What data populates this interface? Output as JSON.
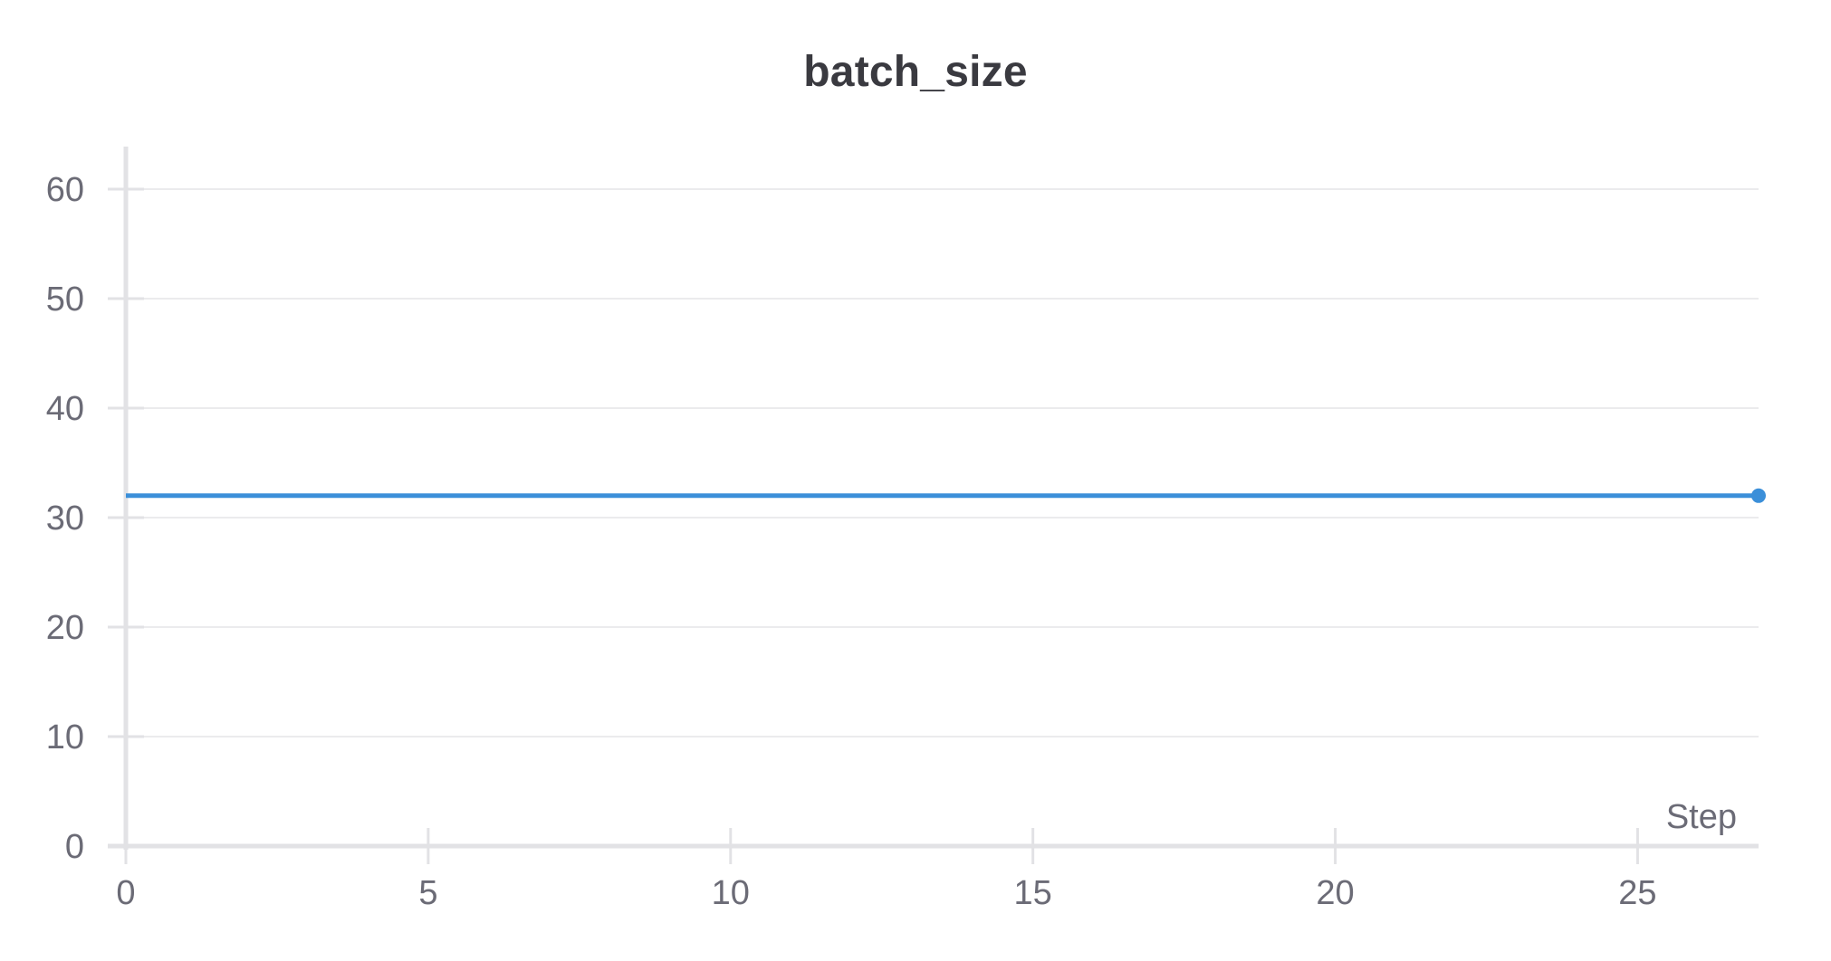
{
  "chart_data": {
    "type": "line",
    "title": "batch_size",
    "xlabel": "Step",
    "ylabel": "",
    "xlim": [
      0,
      27
    ],
    "ylim": [
      0,
      64
    ],
    "x_ticks": [
      0,
      5,
      10,
      15,
      20,
      25
    ],
    "y_ticks": [
      0,
      10,
      20,
      30,
      40,
      50,
      60
    ],
    "grid": "horizontal",
    "legend": "none",
    "series": [
      {
        "x": [
          0,
          27
        ],
        "values": [
          32,
          32
        ],
        "color": "#3b8fd9",
        "end_marker": true
      }
    ]
  },
  "colors": {
    "axis": "#e2e2e5",
    "grid": "#ebebed",
    "text": "#6b6b76",
    "title": "#3a3a40"
  }
}
